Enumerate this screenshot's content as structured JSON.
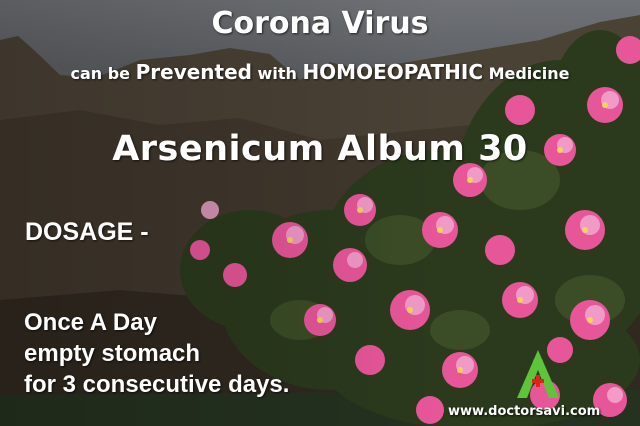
{
  "colors": {
    "text": "#ffffff",
    "flower_pink": "#e8569a",
    "flower_light": "#f2a7cf",
    "leaves": "#2e3a1f",
    "logo_green": "#5ec43a",
    "logo_red": "#e2231a"
  },
  "header": {
    "title": "Corona Virus",
    "subtitle_part1": "can be ",
    "subtitle_part2": "Prevented",
    "subtitle_part3": " with ",
    "subtitle_part4": "HOMOEOPATHIC",
    "subtitle_part5": " Medicine"
  },
  "medicine": {
    "name": "Arsenicum Album 30"
  },
  "dosage": {
    "label": "DOSAGE -",
    "lines": [
      "Once A Day",
      "empty stomach",
      "for 3 consecutive days."
    ]
  },
  "brand": {
    "logo_icon": "A-medical-cross-logo",
    "website": "www.doctorsavi.com"
  }
}
